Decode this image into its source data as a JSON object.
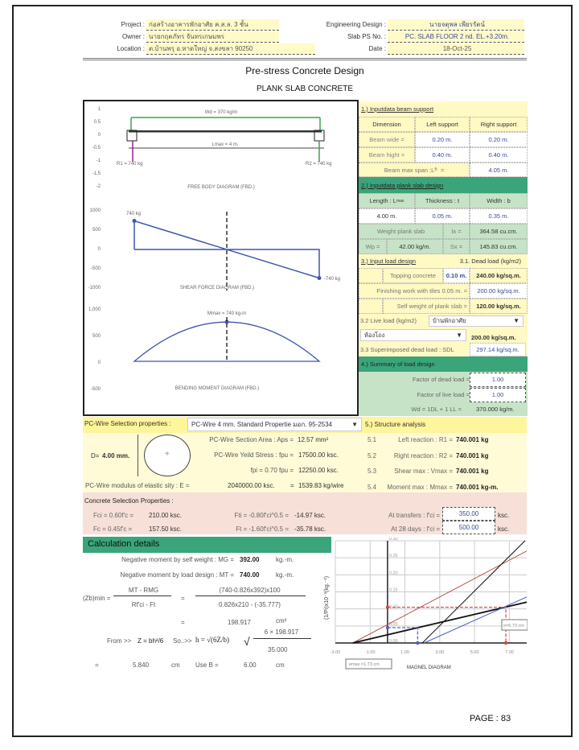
{
  "header": {
    "project_label": "Project :",
    "project": "ก่อสร้างอาคารพักอาศัย ค.ส.ล. 3 ชั้น",
    "owner_label": "Owner :",
    "owner": "นายกฤตภัทร จันทรเกษมพร",
    "location_label": "Location :",
    "location": "ต.บ้านพรุ อ.หาดใหญ่ จ.สงขลา 90250",
    "engineer_label": "Engineering Design :",
    "engineer": "นายจตุพล เพียรรัตน์",
    "slab_label": "Slab PS No. :",
    "slab": "PC. SLAB FLOOR 2 nd. EL.+3.20m.",
    "date_label": "Date :",
    "date": "18-Oct-25"
  },
  "title": "Pre-stress Concrete Design",
  "subtitle": "PLANK SLAB CONCRETE",
  "diagrams": {
    "fbd": {
      "title": "FREE BODY DIAGRAM (FBD.)",
      "load": "Wd = 370 kg/m",
      "span": "Lmax = 4 m.",
      "r1": "R1 = 740 kg",
      "r2": "R2 = 740 kg",
      "yticks": [
        "1",
        "0.5",
        "0",
        "-0.5",
        "-1",
        "-1.5",
        "-2"
      ]
    },
    "sfd": {
      "title": "SHEAR FORCE DIAGRAM (FBD.)",
      "left_label": "740 kg",
      "right_label": "-740 kg",
      "yticks": [
        "1000",
        "500",
        "0",
        "-500",
        "-1000"
      ],
      "values": [
        740,
        -740
      ]
    },
    "bmd": {
      "title": "BENDING MOMENT DIAGRAM (FBD.)",
      "max_label": "Mmax = 740 kg-m",
      "yticks": [
        "1,000",
        "500",
        "0",
        "-500"
      ],
      "max": 740
    }
  },
  "s1": {
    "title": "1.) Inputdata beam support",
    "h": [
      "Dimension",
      "Left support",
      "Right support"
    ],
    "rows": [
      [
        "Beam wide  =",
        "0.20 m.",
        "0.20 m."
      ],
      [
        "Beam hight =",
        "0.40 m.",
        "0.40 m."
      ]
    ],
    "span_label": "Beam max span :L",
    "span_sub": "B",
    "span_eq": "=",
    "span": "4.05 m."
  },
  "s2": {
    "title": "2.) Inputdata plank slab design",
    "h": [
      "Length : L",
      "Thickness : t",
      "Width : b"
    ],
    "h_sub": "max",
    "vals": [
      "4.00 m.",
      "0.05 m.",
      "0.35 m."
    ],
    "weight_label": "Weight plank slab",
    "ix_label": "Ix =",
    "ix": "364.58 cu.cm.",
    "wp_label": "Wp =",
    "wp": "42.00 kg/m.",
    "sx_label": "Sx =",
    "sx": "145.83 cu.cm."
  },
  "s3": {
    "title": "3.) Input load design",
    "dead_title": "3.1.  Dead load  (kg/m2)",
    "topping_label": "Topping concrete",
    "topping_t": "0.10 m.",
    "topping": "240.00 kg/sq.m.",
    "finish_label": "Finishing work with  tiles 0.05 m.  =",
    "finish": "200.00 kg/sq.m.",
    "self_label": "Self weight of plank slab =",
    "self": "120.00 kg/sq.m.",
    "live_label": "3.2  Live load  (kg/m2)",
    "live_type": "บ้านพักอาศัย",
    "live_room": "ห้องโถง",
    "live": "200.00 kg/sq.m.",
    "sdl_label": "3.3  Superimposed dead load : SDL",
    "sdl": "297.14 kg/sq.m."
  },
  "s4": {
    "title": "4.) Summary of load design",
    "fd_label": "Factor of dead load =",
    "fd": "1.00",
    "fl_label": "Factor of  live load =",
    "fl": "1.00",
    "wd_label": "Wd = 1DL + 1 LL  =",
    "wd": "370.000 kg/m."
  },
  "wire": {
    "label": "PC-Wire Selection properties :",
    "selected": "PC-Wire  4 mm.  Standard Propertie มอก. 95-2534",
    "d_label": "D=",
    "d": "4.00 mm.",
    "area_label": "PC-Wire Section Area : Aps  =",
    "area": "12.57   mm²",
    "fpu_label": "PC-Wire Yeild Stress : fpu  =",
    "fpu": "17500.00 ksc.",
    "fpi_label": "fpi = 0.70 fpu  =",
    "fpi": "12250.00 ksc.",
    "e_label": "PC-Wire modulus of elastic sity : E =",
    "e": "2040000.00 ksc.",
    "eq": "=",
    "per_wire": "1539.83 kg/wire"
  },
  "s5": {
    "title": "5.) Structure analysis",
    "rows": [
      [
        "5.1",
        "Left reaction : R1 =",
        "740.001 kg"
      ],
      [
        "5.2",
        "Right reaction : R2 =",
        "740.001 kg"
      ],
      [
        "5.3",
        "Shear max : Vmax =",
        "740.001 kg"
      ],
      [
        "5.4",
        "Moment max : Mmax =",
        "740.001 kg-m."
      ]
    ]
  },
  "concrete": {
    "title": "Concrete Selection Properties :",
    "fci_label": "Fci = 0.60f'c  =",
    "fci": "210.00 ksc.",
    "fti_label": "Fti = -0.80f'ci^0.5  =",
    "fti": "-14.97 ksc.",
    "fc_label": "Fc = 0.45f'c  =",
    "fc": "157.50 ksc.",
    "ft_label": "Ft = -1.60f'ci^0.5  =",
    "ft": "-35.78 ksc.",
    "transfer_label": "At transfers : f'ci =",
    "transfer": "350.00",
    "days_label": "At 28 days : f'ci =",
    "days": "500.00",
    "unit": "ksc."
  },
  "calc": {
    "title": "Calculation details",
    "mg_label": "Negative moment by self weight :  MG =",
    "mg": "392.00",
    "mt_label": "Negative moment by load design :  MT =",
    "mt": "740.00",
    "unit_m": "kg.-m.",
    "zb_label": "(Zb)min =",
    "num": "MT - RMG",
    "den": "Rf'ci - Ft",
    "eq": "=",
    "num2": "(740-0.826x392)x100",
    "den2": "0.826x210 - (-35.777)",
    "zb": "198.917",
    "zb_unit": "cm³",
    "from": "From  >>",
    "z_formula": "Z = bh²/6",
    "so": "So..>>",
    "h_formula": "h = √(6Z/b)",
    "num3": "6 × 198.917",
    "den3": "35.000",
    "h": "5.840",
    "cm": "cm",
    "use_label": "Use B =",
    "use": "6.00"
  },
  "chart_data": {
    "type": "line",
    "title": "MAGNEL DIAGRAM",
    "ylabel": "(1/Pi)x10⁻³(kg.⁻¹)",
    "xlim": [
      -3,
      8
    ],
    "ylim": [
      0,
      0.3
    ],
    "xticks": [
      "-3.00",
      "-1.00",
      "1.00",
      "3.00",
      "5.00",
      "7.00"
    ],
    "yticks": [
      "0.00",
      "0.05",
      "0.10",
      "0.15",
      "0.20",
      "0.25",
      "0.30"
    ],
    "grid": true,
    "series": [
      {
        "color": "#c0504d",
        "points": [
          [
            -2,
            0
          ],
          [
            8,
            0.27
          ]
        ]
      },
      {
        "color": "#111111",
        "points": [
          [
            -2,
            0
          ],
          [
            8,
            0.12
          ]
        ]
      },
      {
        "color": "#111111",
        "points": [
          [
            2,
            0
          ],
          [
            7.9,
            0.3
          ]
        ]
      },
      {
        "color": "#4a5fc1",
        "points": [
          [
            2.1,
            0
          ],
          [
            8,
            0.135
          ]
        ]
      }
    ],
    "annotations": [
      {
        "text": "emax =1.73 cm",
        "x": 1.73,
        "y": 0.045,
        "color": "#4a5fc1"
      },
      {
        "text": "e=6.73 cm",
        "x": 6.8,
        "y": 0.105,
        "color": "#d9413f"
      }
    ]
  },
  "page": "PAGE : 83"
}
